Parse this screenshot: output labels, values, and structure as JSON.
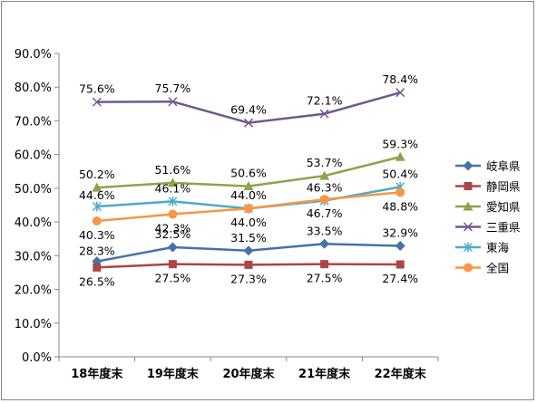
{
  "chart_data": {
    "type": "line",
    "categories": [
      "18年度末",
      "19年度末",
      "20年度末",
      "21年度末",
      "22年度末"
    ],
    "yticks": [
      "0.0%",
      "10.0%",
      "20.0%",
      "30.0%",
      "40.0%",
      "50.0%",
      "60.0%",
      "70.0%",
      "80.0%",
      "90.0%"
    ],
    "ylim": [
      0,
      90
    ],
    "grid": false,
    "legend": "right",
    "series": [
      {
        "name": "岐阜県",
        "values": [
          28.3,
          32.5,
          31.5,
          33.5,
          32.9
        ],
        "labels": [
          "28.3%",
          "32.5%",
          "31.5%",
          "33.5%",
          "32.9%"
        ],
        "color": "#4572A7",
        "marker": "diamond"
      },
      {
        "name": "静岡県",
        "values": [
          26.5,
          27.5,
          27.3,
          27.5,
          27.4
        ],
        "labels": [
          "26.5%",
          "27.5%",
          "27.3%",
          "27.5%",
          "27.4%"
        ],
        "color": "#AA4643",
        "marker": "square"
      },
      {
        "name": "愛知県",
        "values": [
          50.2,
          51.6,
          50.6,
          53.7,
          59.3
        ],
        "labels": [
          "50.2%",
          "51.6%",
          "50.6%",
          "53.7%",
          "59.3%"
        ],
        "color": "#89A54E",
        "marker": "triangle"
      },
      {
        "name": "三重県",
        "values": [
          75.6,
          75.7,
          69.4,
          72.1,
          78.4
        ],
        "labels": [
          "75.6%",
          "75.7%",
          "69.4%",
          "72.1%",
          "78.4%"
        ],
        "color": "#71588F",
        "marker": "x"
      },
      {
        "name": "東海",
        "values": [
          44.6,
          46.1,
          44.0,
          46.3,
          50.4
        ],
        "labels": [
          "44.6%",
          "46.1%",
          "44.0%",
          "46.3%",
          "50.4%"
        ],
        "color": "#4BACC6",
        "marker": "star"
      },
      {
        "name": "全国",
        "values": [
          40.3,
          42.3,
          44.0,
          46.7,
          48.8
        ],
        "labels": [
          "40.3%",
          "42.3%",
          "44.0%",
          "46.7%",
          "48.8%"
        ],
        "color": "#F79646",
        "marker": "circle"
      }
    ]
  }
}
